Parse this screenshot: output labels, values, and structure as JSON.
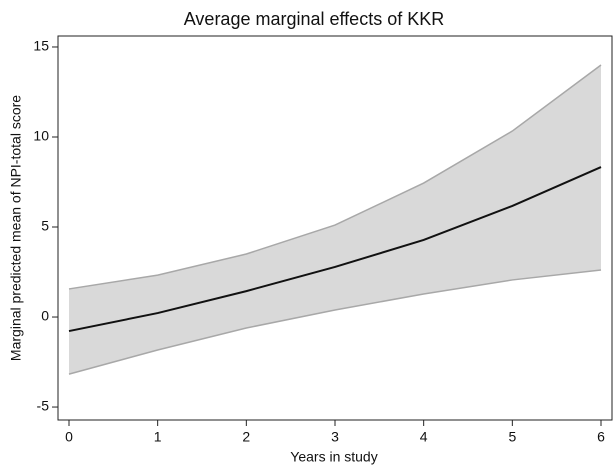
{
  "chart_data": {
    "type": "line",
    "title": "Average marginal effects of KKR",
    "x_label": "Years in study",
    "y_label": "Marginal predicted mean of NPI-total score",
    "x": [
      0,
      1,
      2,
      3,
      4,
      5,
      6
    ],
    "values": [
      -0.78,
      0.22,
      1.44,
      2.78,
      4.28,
      6.17,
      8.33
    ],
    "upper": [
      1.56,
      2.33,
      3.5,
      5.11,
      7.44,
      10.33,
      14.0
    ],
    "lower": [
      -3.17,
      -1.83,
      -0.61,
      0.39,
      1.28,
      2.06,
      2.61
    ],
    "color": "#111111",
    "band_color": "#d9d9d9",
    "band_edge_color": "#a8a8a8",
    "xlim": [
      -0.124,
      6.124
    ],
    "ylim": [
      -5.72,
      15.61
    ],
    "xticks": [
      0,
      1,
      2,
      3,
      4,
      5,
      6
    ],
    "yticks": [
      -5,
      0,
      5,
      10,
      15
    ],
    "grid": false
  }
}
